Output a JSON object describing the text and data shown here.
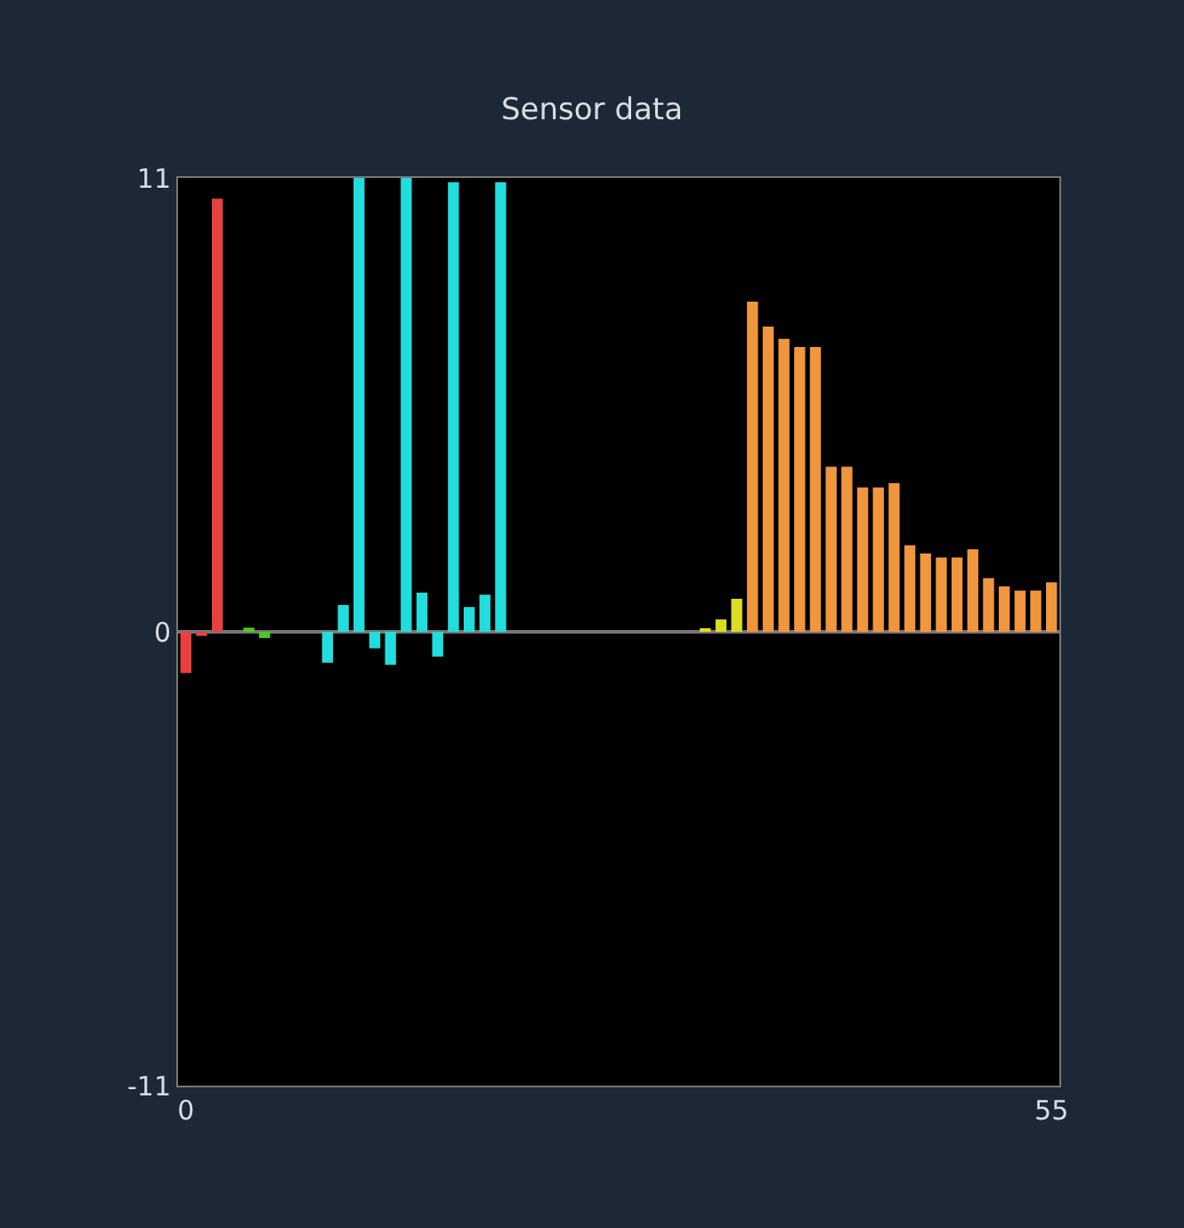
{
  "chart_data": {
    "type": "bar",
    "title": "Sensor data",
    "x": [
      0,
      1,
      2,
      3,
      4,
      5,
      6,
      7,
      8,
      9,
      10,
      11,
      12,
      13,
      14,
      15,
      16,
      17,
      18,
      19,
      20,
      21,
      22,
      23,
      24,
      25,
      26,
      27,
      28,
      29,
      30,
      31,
      32,
      33,
      34,
      35,
      36,
      37,
      38,
      39,
      40,
      41,
      42,
      43,
      44,
      45,
      46,
      47,
      48,
      49,
      50,
      51,
      52,
      53,
      54,
      55
    ],
    "values": [
      -1.0,
      -0.1,
      10.5,
      0,
      0.1,
      -0.15,
      0,
      0,
      0,
      -0.75,
      0.65,
      11,
      -0.4,
      -0.8,
      11,
      0.95,
      -0.6,
      10.9,
      0.6,
      0.9,
      10.9,
      0,
      0,
      0,
      0,
      0,
      0,
      0,
      0,
      0,
      0,
      0,
      0,
      0.05,
      0.3,
      0.8,
      8.0,
      7.4,
      7.1,
      6.9,
      6.9,
      4.0,
      4.0,
      3.5,
      3.5,
      3.6,
      2.1,
      1.9,
      1.8,
      1.8,
      2.0,
      1.3,
      1.1,
      1.0,
      1.0,
      1.2
    ],
    "colors": [
      "#e8403f",
      "#e8403f",
      "#e8403f",
      "#44cc22",
      "#44cc22",
      "#44cc22",
      "#22dddd",
      "#22dddd",
      "#22dddd",
      "#22dddd",
      "#22dddd",
      "#22dddd",
      "#22dddd",
      "#22dddd",
      "#22dddd",
      "#22dddd",
      "#22dddd",
      "#22dddd",
      "#22dddd",
      "#22dddd",
      "#22dddd",
      "#22dddd",
      "#22dddd",
      "#22dddd",
      "#dddd22",
      "#dddd22",
      "#dddd22",
      "#dddd22",
      "#dddd22",
      "#dddd22",
      "#dddd22",
      "#dddd22",
      "#dddd22",
      "#dddd22",
      "#dddd22",
      "#dddd22",
      "#f0963c",
      "#f0963c",
      "#f0963c",
      "#f0963c",
      "#f0963c",
      "#f0963c",
      "#f0963c",
      "#f0963c",
      "#f0963c",
      "#f0963c",
      "#f0963c",
      "#f0963c",
      "#f0963c",
      "#f0963c",
      "#f0963c",
      "#f0963c",
      "#f0963c",
      "#f0963c",
      "#f0963c",
      "#f0963c"
    ],
    "xlim": [
      -0.5,
      55.5
    ],
    "xticks": [
      0,
      55
    ],
    "ylim": [
      -11,
      11
    ],
    "yticks": [
      -11,
      0,
      11
    ],
    "grid": "y"
  }
}
